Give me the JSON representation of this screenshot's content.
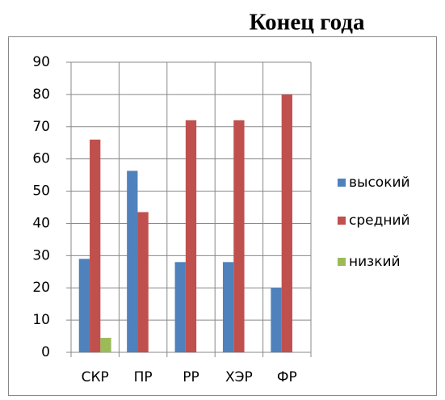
{
  "chart_data": {
    "type": "bar",
    "title": "Конец года",
    "categories": [
      "СКР",
      "ПР",
      "РР",
      "ХЭР",
      "ФР"
    ],
    "series": [
      {
        "name": "высокий",
        "color": "#4f81bd",
        "values": [
          29,
          56.3,
          28,
          28,
          20
        ]
      },
      {
        "name": "средний",
        "color": "#c0504d",
        "values": [
          66,
          43.5,
          72,
          72,
          80
        ]
      },
      {
        "name": "низкий",
        "color": "#9bbb59",
        "values": [
          4.5,
          0,
          0,
          0,
          0
        ]
      }
    ],
    "ylim": [
      0,
      90
    ],
    "yticks": [
      0,
      10,
      20,
      30,
      40,
      50,
      60,
      70,
      80,
      90
    ],
    "grid": true,
    "legend": "right"
  }
}
